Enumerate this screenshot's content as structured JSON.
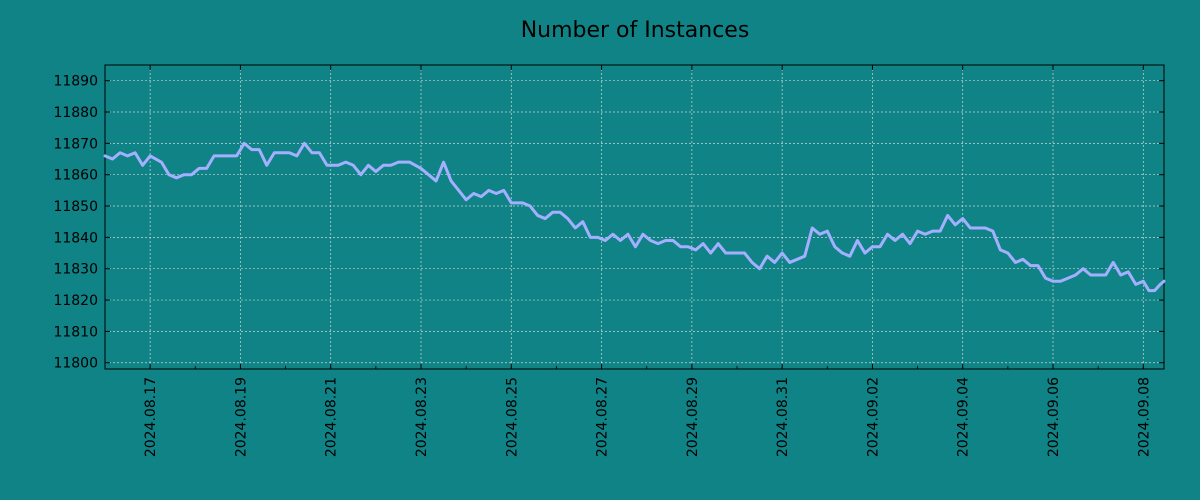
{
  "chart_data": {
    "type": "line",
    "title": "Number of Instances",
    "xlabel": "",
    "ylabel": "",
    "x_range": [
      "2024-08-16",
      "2024-09-08 11:00"
    ],
    "ylim": [
      11798,
      11895
    ],
    "x_tick_labels": [
      "2024.08.17",
      "2024.08.19",
      "2024.08.21",
      "2024.08.23",
      "2024.08.25",
      "2024.08.27",
      "2024.08.29",
      "2024.08.31",
      "2024.09.02",
      "2024.09.04",
      "2024.09.06",
      "2024.09.08"
    ],
    "y_ticks": [
      11800,
      11810,
      11820,
      11830,
      11840,
      11850,
      11860,
      11870,
      11880,
      11890
    ],
    "grid": true,
    "legend": "none",
    "series": [
      {
        "color": "#a4b0ff",
        "points": [
          [
            "2024-08-16 00:00",
            11866
          ],
          [
            "2024-08-16 04:00",
            11865
          ],
          [
            "2024-08-16 08:00",
            11867
          ],
          [
            "2024-08-16 12:00",
            11866
          ],
          [
            "2024-08-16 16:00",
            11867
          ],
          [
            "2024-08-16 20:00",
            11863
          ],
          [
            "2024-08-17 00:00",
            11866
          ],
          [
            "2024-08-17 06:00",
            11864
          ],
          [
            "2024-08-17 10:00",
            11860
          ],
          [
            "2024-08-17 14:00",
            11859
          ],
          [
            "2024-08-17 18:00",
            11860
          ],
          [
            "2024-08-17 22:00",
            11860
          ],
          [
            "2024-08-18 02:00",
            11862
          ],
          [
            "2024-08-18 06:00",
            11862
          ],
          [
            "2024-08-18 10:00",
            11866
          ],
          [
            "2024-08-18 16:00",
            11866
          ],
          [
            "2024-08-18 22:00",
            11866
          ],
          [
            "2024-08-19 02:00",
            11870
          ],
          [
            "2024-08-19 06:00",
            11868
          ],
          [
            "2024-08-19 10:00",
            11868
          ],
          [
            "2024-08-19 14:00",
            11863
          ],
          [
            "2024-08-19 18:00",
            11867
          ],
          [
            "2024-08-19 22:00",
            11867
          ],
          [
            "2024-08-20 02:00",
            11867
          ],
          [
            "2024-08-20 06:00",
            11866
          ],
          [
            "2024-08-20 10:00",
            11870
          ],
          [
            "2024-08-20 14:00",
            11867
          ],
          [
            "2024-08-20 18:00",
            11867
          ],
          [
            "2024-08-20 22:00",
            11863
          ],
          [
            "2024-08-21 04:00",
            11863
          ],
          [
            "2024-08-21 08:00",
            11864
          ],
          [
            "2024-08-21 12:00",
            11863
          ],
          [
            "2024-08-21 16:00",
            11860
          ],
          [
            "2024-08-21 20:00",
            11863
          ],
          [
            "2024-08-22 00:00",
            11861
          ],
          [
            "2024-08-22 04:00",
            11863
          ],
          [
            "2024-08-22 08:00",
            11863
          ],
          [
            "2024-08-22 12:00",
            11864
          ],
          [
            "2024-08-22 18:00",
            11864
          ],
          [
            "2024-08-23 00:00",
            11862
          ],
          [
            "2024-08-23 04:00",
            11860
          ],
          [
            "2024-08-23 08:00",
            11858
          ],
          [
            "2024-08-23 12:00",
            11864
          ],
          [
            "2024-08-23 16:00",
            11858
          ],
          [
            "2024-08-23 20:00",
            11855
          ],
          [
            "2024-08-24 00:00",
            11852
          ],
          [
            "2024-08-24 04:00",
            11854
          ],
          [
            "2024-08-24 08:00",
            11853
          ],
          [
            "2024-08-24 12:00",
            11855
          ],
          [
            "2024-08-24 16:00",
            11854
          ],
          [
            "2024-08-24 20:00",
            11855
          ],
          [
            "2024-08-25 00:00",
            11851
          ],
          [
            "2024-08-25 06:00",
            11851
          ],
          [
            "2024-08-25 10:00",
            11850
          ],
          [
            "2024-08-25 14:00",
            11847
          ],
          [
            "2024-08-25 18:00",
            11846
          ],
          [
            "2024-08-25 22:00",
            11848
          ],
          [
            "2024-08-26 02:00",
            11848
          ],
          [
            "2024-08-26 06:00",
            11846
          ],
          [
            "2024-08-26 10:00",
            11843
          ],
          [
            "2024-08-26 14:00",
            11845
          ],
          [
            "2024-08-26 18:00",
            11840
          ],
          [
            "2024-08-26 22:00",
            11840
          ],
          [
            "2024-08-27 02:00",
            11839
          ],
          [
            "2024-08-27 06:00",
            11841
          ],
          [
            "2024-08-27 10:00",
            11839
          ],
          [
            "2024-08-27 14:00",
            11841
          ],
          [
            "2024-08-27 18:00",
            11837
          ],
          [
            "2024-08-27 22:00",
            11841
          ],
          [
            "2024-08-28 02:00",
            11839
          ],
          [
            "2024-08-28 06:00",
            11838
          ],
          [
            "2024-08-28 10:00",
            11839
          ],
          [
            "2024-08-28 14:00",
            11839
          ],
          [
            "2024-08-28 18:00",
            11837
          ],
          [
            "2024-08-28 22:00",
            11837
          ],
          [
            "2024-08-29 02:00",
            11836
          ],
          [
            "2024-08-29 06:00",
            11838
          ],
          [
            "2024-08-29 10:00",
            11835
          ],
          [
            "2024-08-29 14:00",
            11838
          ],
          [
            "2024-08-29 18:00",
            11835
          ],
          [
            "2024-08-29 22:00",
            11835
          ],
          [
            "2024-08-30 04:00",
            11835
          ],
          [
            "2024-08-30 08:00",
            11832
          ],
          [
            "2024-08-30 12:00",
            11830
          ],
          [
            "2024-08-30 16:00",
            11834
          ],
          [
            "2024-08-30 20:00",
            11832
          ],
          [
            "2024-08-31 00:00",
            11835
          ],
          [
            "2024-08-31 04:00",
            11832
          ],
          [
            "2024-08-31 08:00",
            11833
          ],
          [
            "2024-08-31 12:00",
            11834
          ],
          [
            "2024-08-31 16:00",
            11843
          ],
          [
            "2024-08-31 20:00",
            11841
          ],
          [
            "2024-09-01 00:00",
            11842
          ],
          [
            "2024-09-01 04:00",
            11837
          ],
          [
            "2024-09-01 08:00",
            11835
          ],
          [
            "2024-09-01 12:00",
            11834
          ],
          [
            "2024-09-01 16:00",
            11839
          ],
          [
            "2024-09-01 20:00",
            11835
          ],
          [
            "2024-09-02 00:00",
            11837
          ],
          [
            "2024-09-02 04:00",
            11837
          ],
          [
            "2024-09-02 08:00",
            11841
          ],
          [
            "2024-09-02 12:00",
            11839
          ],
          [
            "2024-09-02 16:00",
            11841
          ],
          [
            "2024-09-02 20:00",
            11838
          ],
          [
            "2024-09-03 00:00",
            11842
          ],
          [
            "2024-09-03 04:00",
            11841
          ],
          [
            "2024-09-03 08:00",
            11842
          ],
          [
            "2024-09-03 12:00",
            11842
          ],
          [
            "2024-09-03 16:00",
            11847
          ],
          [
            "2024-09-03 20:00",
            11844
          ],
          [
            "2024-09-04 00:00",
            11846
          ],
          [
            "2024-09-04 04:00",
            11843
          ],
          [
            "2024-09-04 08:00",
            11843
          ],
          [
            "2024-09-04 12:00",
            11843
          ],
          [
            "2024-09-04 16:00",
            11842
          ],
          [
            "2024-09-04 20:00",
            11836
          ],
          [
            "2024-09-05 00:00",
            11835
          ],
          [
            "2024-09-05 04:00",
            11832
          ],
          [
            "2024-09-05 08:00",
            11833
          ],
          [
            "2024-09-05 12:00",
            11831
          ],
          [
            "2024-09-05 16:00",
            11831
          ],
          [
            "2024-09-05 20:00",
            11827
          ],
          [
            "2024-09-06 00:00",
            11826
          ],
          [
            "2024-09-06 04:00",
            11826
          ],
          [
            "2024-09-06 08:00",
            11827
          ],
          [
            "2024-09-06 12:00",
            11828
          ],
          [
            "2024-09-06 16:00",
            11830
          ],
          [
            "2024-09-06 20:00",
            11828
          ],
          [
            "2024-09-07 00:00",
            11828
          ],
          [
            "2024-09-07 04:00",
            11828
          ],
          [
            "2024-09-07 08:00",
            11832
          ],
          [
            "2024-09-07 12:00",
            11828
          ],
          [
            "2024-09-07 16:00",
            11829
          ],
          [
            "2024-09-07 20:00",
            11825
          ],
          [
            "2024-09-08 00:00",
            11826
          ],
          [
            "2024-09-08 03:00",
            11823
          ],
          [
            "2024-09-08 06:00",
            11823
          ],
          [
            "2024-09-08 09:00",
            11825
          ],
          [
            "2024-09-08 11:00",
            11826
          ]
        ]
      }
    ]
  }
}
